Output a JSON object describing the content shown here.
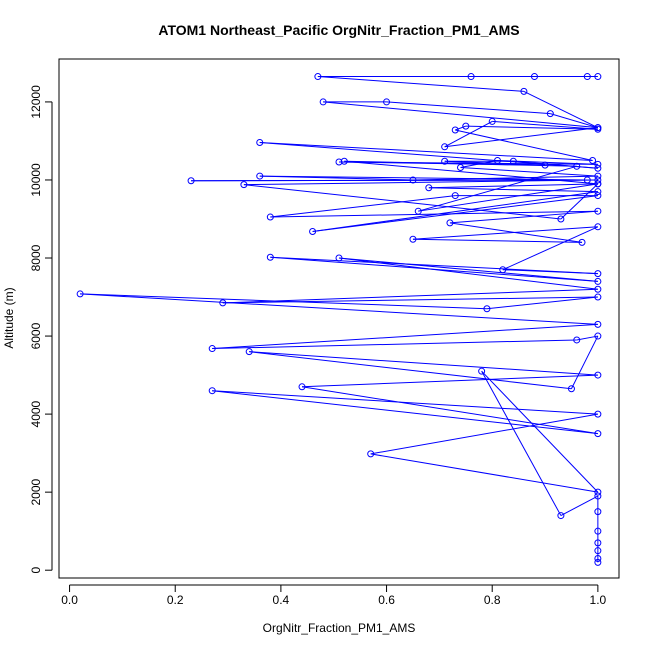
{
  "chart_data": {
    "type": "line",
    "title": "ATOM1 Northeast_Pacific OrgNitr_Fraction_PM1_AMS",
    "xlabel": "OrgNitr_Fraction_PM1_AMS",
    "ylabel": "Altitude (m)",
    "xlim": [
      -0.02,
      1.04
    ],
    "ylim": [
      -200,
      13100
    ],
    "xticks": [
      0.0,
      0.2,
      0.4,
      0.6,
      0.8,
      1.0
    ],
    "xtick_labels": [
      "0.0",
      "0.2",
      "0.4",
      "0.6",
      "0.8",
      "1.0"
    ],
    "yticks": [
      0,
      2000,
      4000,
      6000,
      8000,
      10000,
      12000
    ],
    "ytick_labels": [
      "0",
      "2000",
      "4000",
      "6000",
      "8000",
      "10000",
      "12000"
    ],
    "grid": false,
    "legend": "none",
    "series": [
      {
        "color": "#0000ff",
        "marker": "open-circle",
        "x": [
          1.0,
          1.0,
          1.0,
          1.0,
          1.0,
          1.0,
          1.0,
          0.93,
          0.78,
          1.0,
          0.57,
          1.0,
          0.27,
          1.0,
          0.44,
          1.0,
          0.34,
          0.95,
          1.0,
          0.96,
          0.27,
          1.0,
          0.02,
          0.79,
          1.0,
          0.29,
          1.0,
          0.51,
          1.0,
          0.38,
          1.0,
          0.82,
          1.0,
          0.65,
          0.97,
          0.72,
          1.0,
          0.38,
          0.73,
          1.0,
          0.46,
          1.0,
          0.68,
          1.0,
          0.52,
          0.96,
          0.66,
          1.0,
          0.93,
          0.33,
          1.0,
          0.23,
          0.98,
          0.36,
          0.65,
          1.0,
          0.74,
          0.81,
          1.0,
          0.51,
          0.9,
          0.71,
          0.84,
          1.0,
          0.36,
          0.99,
          0.73,
          0.75,
          1.0,
          0.8,
          0.71,
          1.0,
          0.48,
          0.6,
          0.91,
          1.0,
          0.86,
          0.47,
          0.98,
          0.76,
          0.88,
          1.0
        ],
        "y": [
          200,
          300,
          500,
          700,
          1000,
          1500,
          1900,
          1400,
          5100,
          2000,
          2980,
          4000,
          4600,
          3500,
          4700,
          5000,
          5600,
          4650,
          6000,
          5900,
          5680,
          6300,
          7080,
          6700,
          7000,
          6850,
          7200,
          8000,
          7400,
          8020,
          7600,
          7700,
          8800,
          8480,
          8400,
          8900,
          9200,
          9050,
          9600,
          9600,
          8680,
          9700,
          9800,
          9900,
          10480,
          10350,
          9200,
          9900,
          9000,
          9880,
          10000,
          9980,
          10000,
          10100,
          10000,
          10100,
          10320,
          10500,
          10400,
          10460,
          10380,
          10480,
          10480,
          10300,
          10960,
          10500,
          11280,
          11380,
          11300,
          11500,
          10850,
          11340,
          12000,
          12000,
          11700,
          11340,
          12270,
          12650,
          12650,
          12650,
          12650,
          12650
        ]
      }
    ]
  }
}
